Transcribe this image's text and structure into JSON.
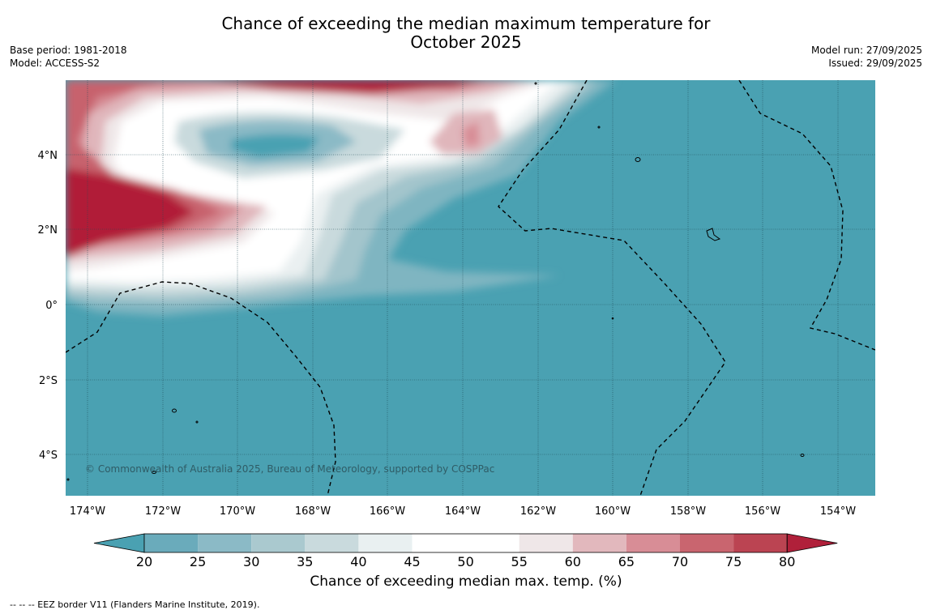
{
  "title": {
    "line1": "Chance of exceeding the median maximum temperature for",
    "line2": "October 2025"
  },
  "meta": {
    "base_period": "Base period: 1981-2018",
    "model": "Model: ACCESS-S2",
    "model_run": "Model run: 27/09/2025",
    "issued": "Issued: 29/09/2025"
  },
  "map": {
    "lon_labels": [
      "174°W",
      "172°W",
      "170°W",
      "168°W",
      "166°W",
      "164°W",
      "162°W",
      "160°W",
      "158°W",
      "156°W",
      "154°W"
    ],
    "lat_labels": [
      "4°N",
      "2°N",
      "0°",
      "2°S",
      "4°S"
    ],
    "copyright": "© Commonwealth of Australia 2025, Bureau of Meteorology, supported by COSPPac"
  },
  "colorbar": {
    "ticks": [
      "20",
      "25",
      "30",
      "35",
      "40",
      "45",
      "50",
      "55",
      "60",
      "65",
      "70",
      "75",
      "80"
    ],
    "colors": [
      "#4aa1b2",
      "#6aabbb",
      "#8bbac6",
      "#aac9cf",
      "#c9dadd",
      "#e9f0f1",
      "#ffffff",
      "#ffffff",
      "#efe7e8",
      "#e2b8bd",
      "#d88d96",
      "#c9656f",
      "#bb4452",
      "#b0203a"
    ],
    "label": "Chance of exceeding median max. temp. (%)"
  },
  "footnote": "--  --  -- EEZ border V11 (Flanders Marine Institute, 2019)."
}
